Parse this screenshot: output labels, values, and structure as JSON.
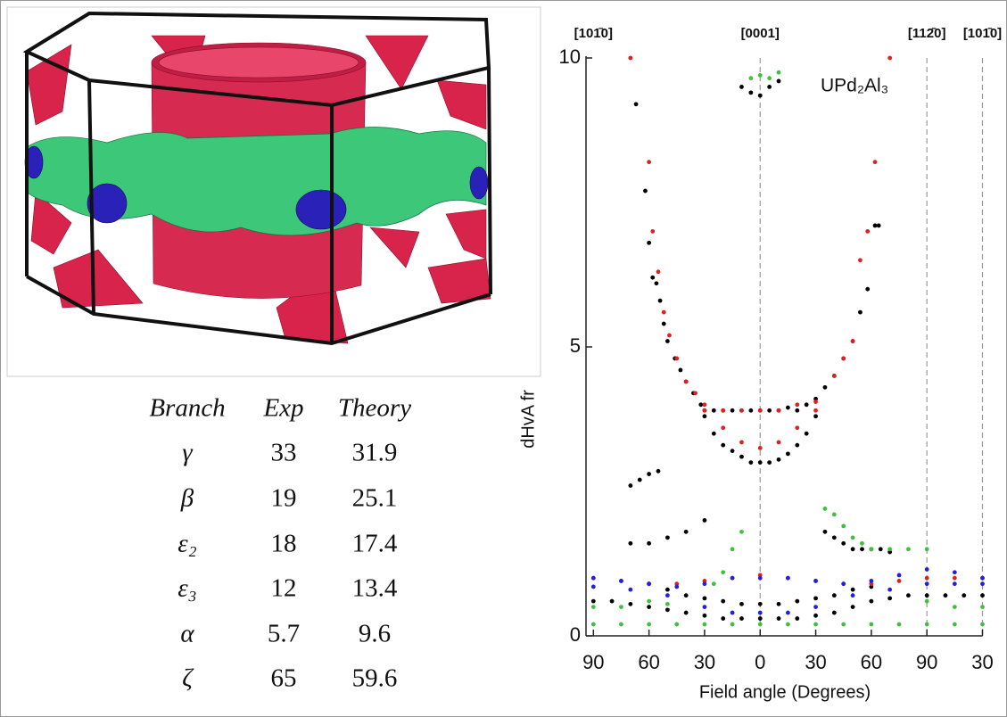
{
  "table": {
    "header": [
      "Branch",
      "Exp",
      "Theory"
    ],
    "rows": [
      [
        "γ",
        "33",
        "31.9"
      ],
      [
        "β",
        "19",
        "25.1"
      ],
      [
        "ε₂",
        "18",
        "17.4"
      ],
      [
        "ε₃",
        "12",
        "13.4"
      ],
      [
        "α",
        "5.7",
        "9.6"
      ],
      [
        "ζ",
        "65",
        "59.6"
      ]
    ]
  },
  "chart_data": {
    "type": "scatter",
    "x_label": "Field angle (Degrees)",
    "y_label": "dHvA fr",
    "annotation": "UPd₂Al₃",
    "xlim": [
      -94,
      120
    ],
    "ylim": [
      0,
      10
    ],
    "xticks": [
      {
        "value": -90,
        "label": "90"
      },
      {
        "value": -60,
        "label": "60"
      },
      {
        "value": -30,
        "label": "30"
      },
      0,
      30,
      60,
      90,
      {
        "value": 120,
        "label": "30"
      }
    ],
    "yticks": [
      0,
      5,
      10
    ],
    "top_labels": [
      {
        "value": -90,
        "label": "[101̄0]"
      },
      {
        "value": 0,
        "label": "[0001]"
      },
      {
        "value": 90,
        "label": "[112̄0]"
      },
      {
        "value": 120,
        "label": "[101̄0]"
      }
    ],
    "reference_lines": [
      0,
      90,
      120
    ],
    "series": [
      {
        "color": "#000000",
        "x": [
          -67,
          -62,
          -60,
          -58,
          -56,
          -54,
          -52,
          -50,
          -46,
          -43,
          -40,
          -36,
          -32,
          -30,
          -25,
          -20,
          -15,
          -10,
          -5,
          0,
          5,
          10,
          15,
          20,
          25,
          30,
          35,
          40,
          45,
          50,
          54,
          58,
          62,
          64,
          -30,
          -25,
          -20,
          -15,
          -10,
          -5,
          0,
          5,
          10,
          15,
          20,
          25,
          30,
          -10,
          -5,
          0,
          5,
          10,
          -70,
          -65,
          -60,
          -55,
          -70,
          -60,
          -50,
          -40,
          -30,
          35,
          40,
          45,
          50,
          55,
          60,
          65,
          70,
          -90,
          -80,
          -70,
          -60,
          -50,
          -40,
          -30,
          -20,
          -10,
          0,
          10,
          20,
          30,
          40,
          50,
          60,
          70,
          80,
          90,
          100,
          110,
          120,
          -60,
          -50,
          -40,
          -30,
          -20,
          -10,
          0,
          10,
          20,
          30,
          40,
          50,
          60
        ],
        "values": [
          9.2,
          7.7,
          6.8,
          6.2,
          6.1,
          5.8,
          5.4,
          5.1,
          4.8,
          4.6,
          4.4,
          4.2,
          4.0,
          3.9,
          3.9,
          3.9,
          3.9,
          3.9,
          3.9,
          3.9,
          3.9,
          3.9,
          3.95,
          3.9,
          4.0,
          4.1,
          4.3,
          4.5,
          4.8,
          5.1,
          5.6,
          6.0,
          7.1,
          7.1,
          3.8,
          3.5,
          3.3,
          3.2,
          3.1,
          3.0,
          3.0,
          3.0,
          3.05,
          3.15,
          3.3,
          3.5,
          3.8,
          9.5,
          9.4,
          9.35,
          9.5,
          9.6,
          2.6,
          2.7,
          2.8,
          2.85,
          1.6,
          1.6,
          1.7,
          1.8,
          2.0,
          1.8,
          1.7,
          1.6,
          1.5,
          1.5,
          1.5,
          1.5,
          1.45,
          0.6,
          0.6,
          0.55,
          0.5,
          0.45,
          0.4,
          0.35,
          0.3,
          0.3,
          0.3,
          0.3,
          0.3,
          0.35,
          0.4,
          0.5,
          0.6,
          0.65,
          0.7,
          0.7,
          0.7,
          0.7,
          0.7,
          0.9,
          0.8,
          0.7,
          0.65,
          0.6,
          0.55,
          0.55,
          0.55,
          0.6,
          0.65,
          0.7,
          0.8,
          0.85
        ]
      },
      {
        "color": "#e02020",
        "x": [
          -70,
          -60,
          -58,
          -55,
          -52,
          -49,
          -45,
          -40,
          -35,
          -30,
          -20,
          -10,
          0,
          10,
          20,
          30,
          40,
          45,
          50,
          54,
          58,
          62,
          70,
          -30,
          -20,
          -10,
          0,
          10,
          20,
          30,
          -90,
          -75,
          -60,
          -45,
          -30,
          -15,
          0,
          15,
          30,
          45,
          60,
          75,
          90,
          105,
          120
        ],
        "values": [
          10,
          8.2,
          7.0,
          6.3,
          5.6,
          5.2,
          4.8,
          4.4,
          4.2,
          4.0,
          3.9,
          3.9,
          3.9,
          3.9,
          4.0,
          4.05,
          4.5,
          4.8,
          5.1,
          6.5,
          7.0,
          8.2,
          10,
          3.9,
          3.6,
          3.35,
          3.25,
          3.35,
          3.6,
          3.9,
          1.0,
          0.95,
          0.9,
          0.9,
          0.95,
          1.0,
          1.05,
          1.0,
          0.95,
          0.9,
          0.9,
          0.95,
          1.0,
          1.0,
          1.0
        ]
      },
      {
        "color": "#2020e0",
        "x": [
          -90,
          -75,
          -60,
          -45,
          -30,
          -15,
          0,
          15,
          30,
          45,
          60,
          75,
          90,
          105,
          120,
          -90,
          -70,
          -50,
          -30,
          -15,
          0,
          15,
          30,
          50,
          70,
          90,
          105,
          120
        ],
        "values": [
          1.0,
          0.95,
          0.9,
          0.85,
          0.9,
          1.0,
          1.0,
          1.0,
          0.95,
          0.9,
          0.95,
          1.05,
          1.15,
          1.1,
          1.0,
          0.85,
          0.8,
          0.7,
          0.5,
          0.4,
          0.4,
          0.4,
          0.5,
          0.7,
          0.8,
          0.9,
          0.9,
          0.9
        ]
      },
      {
        "color": "#40c040",
        "x": [
          -5,
          0,
          5,
          10,
          -10,
          -15,
          -20,
          -25,
          35,
          40,
          45,
          50,
          55,
          60,
          70,
          80,
          90,
          -90,
          -75,
          -60,
          -45,
          -30,
          -15,
          0,
          15,
          30,
          45,
          60,
          75,
          90,
          105,
          120,
          -90,
          -75,
          -60,
          -50,
          90,
          105,
          120
        ],
        "values": [
          9.65,
          9.7,
          9.65,
          9.75,
          1.8,
          1.5,
          1.1,
          0.9,
          2.2,
          2.1,
          1.9,
          1.7,
          1.6,
          1.5,
          1.5,
          1.5,
          1.5,
          0.2,
          0.2,
          0.2,
          0.2,
          0.2,
          0.2,
          0.2,
          0.2,
          0.2,
          0.2,
          0.2,
          0.2,
          0.2,
          0.2,
          0.2,
          0.5,
          0.5,
          0.6,
          0.55,
          0.6,
          0.5,
          0.5
        ]
      }
    ]
  }
}
